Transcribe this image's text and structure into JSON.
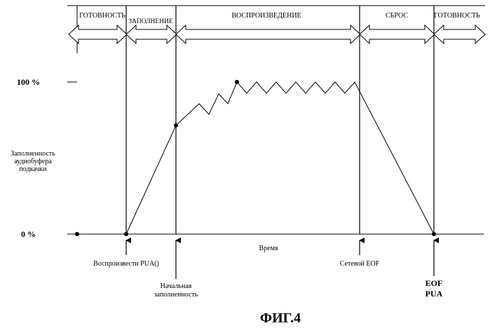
{
  "phases": [
    {
      "id": "ready1",
      "label": "ГОТОВНОСТЬ"
    },
    {
      "id": "fill",
      "label": "ЗАПОЛНЕНИЕ"
    },
    {
      "id": "play",
      "label": "ВОСПРОИЗВЕДЕНИЕ"
    },
    {
      "id": "reset",
      "label": "СБРОС"
    },
    {
      "id": "ready2",
      "label": "ГОТОВНОСТЬ"
    }
  ],
  "y_axis": {
    "label_lines": [
      "Заполненность",
      "аудиобуфера",
      "подкачки"
    ],
    "tick_top": "100 %",
    "tick_bottom": "0 %"
  },
  "x_axis": {
    "label": "Время"
  },
  "events": {
    "play_pua": "Воспроизвести PUA()",
    "initial_fill_lines": [
      "Начальная",
      "заполненность"
    ],
    "network_eof": "Сетевой EOF",
    "eof_pua_lines": [
      "EOF",
      "PUA"
    ]
  },
  "figure_caption": "ФИГ.4"
}
